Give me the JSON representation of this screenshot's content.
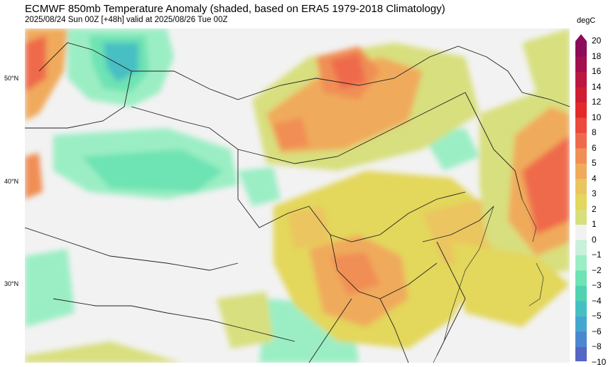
{
  "title": "ECMWF 850mb Temperature Anomaly (shaded, based on ERA5 1979-2018 Climatology)",
  "subtitle": "2025/08/24 Sun 00Z [+48h] valid at 2025/08/26 Tue 00Z",
  "map": {
    "latitude_labels": [
      "50°N",
      "40°N",
      "30°N"
    ]
  },
  "colorbar": {
    "unit": "degC",
    "ticks": [
      "20",
      "18",
      "16",
      "14",
      "12",
      "10",
      "8",
      "6",
      "5",
      "4",
      "3",
      "2",
      "1",
      "0",
      "−1",
      "−2",
      "−3",
      "−4",
      "−5",
      "−6",
      "−8",
      "−10"
    ],
    "colors": [
      "#8c0c5a",
      "#a3104d",
      "#bb1740",
      "#cf1e33",
      "#e22a2a",
      "#eb4a3d",
      "#ef6a4c",
      "#f08e55",
      "#f0aa5c",
      "#ebc55f",
      "#e3d75c",
      "#d8df7e",
      "#f2f2f2",
      "#c8f0da",
      "#9beec4",
      "#6ee3b3",
      "#4fd3b0",
      "#46bfc3",
      "#45a6cf",
      "#4b87d0",
      "#5566c5"
    ],
    "colors_note": "band colors top to bottom"
  }
}
